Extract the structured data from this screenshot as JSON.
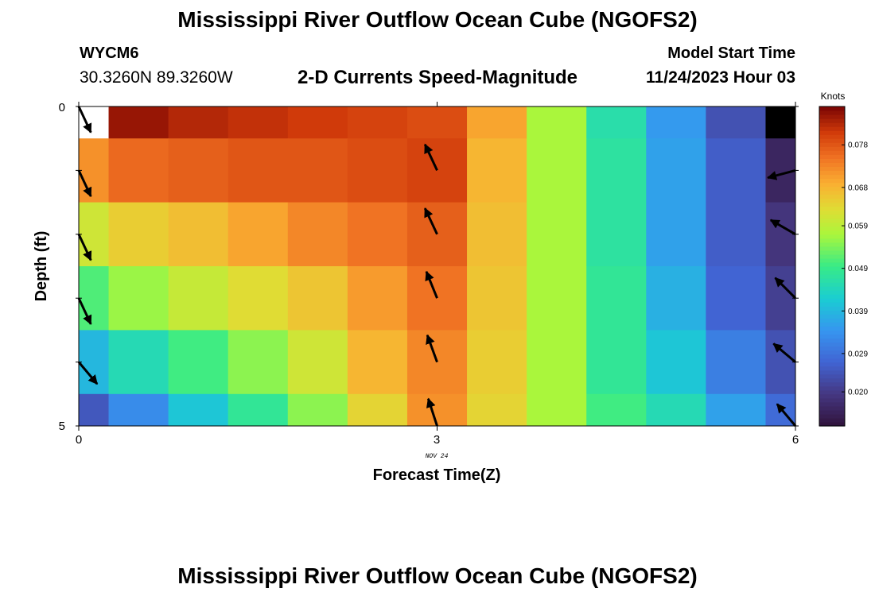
{
  "header": {
    "title": "Mississippi River Outflow Ocean Cube (NGOFS2)",
    "footer_title": "Mississippi River Outflow Ocean Cube (NGOFS2)",
    "station_id": "WYCM6",
    "station_coords": "30.3260N  89.3260W",
    "subtitle": "2-D Currents Speed-Magnitude",
    "model_start_label": "Model Start Time",
    "model_start_value": "11/24/2023 Hour 03"
  },
  "chart_data": {
    "type": "heatmap",
    "title": "2-D Currents Speed-Magnitude",
    "xlabel": "Forecast Time(Z)",
    "ylabel": "Depth (ft)",
    "x_ticks": [
      "0",
      "3",
      "6"
    ],
    "y_ticks": [
      "0",
      "5"
    ],
    "xlim": [
      0,
      6
    ],
    "ylim": [
      0,
      5
    ],
    "date_label": "NOV 24",
    "x_bins": [
      0,
      0.25,
      0.75,
      1.25,
      1.75,
      2.25,
      2.75,
      3.25,
      3.75,
      4.25,
      4.75,
      5.25,
      5.75,
      6
    ],
    "y_bins": [
      0,
      0.5,
      1.5,
      2.5,
      3.5,
      4.5,
      5
    ],
    "colorbar": {
      "units": "Knots",
      "min": 0.012,
      "max": 0.087,
      "ticks": [
        "0.078",
        "0.068",
        "0.059",
        "0.049",
        "0.039",
        "0.029",
        "0.020"
      ]
    },
    "grid": [
      [
        null,
        0.085,
        0.083,
        0.082,
        0.081,
        0.08,
        0.079,
        0.07,
        0.057,
        0.046,
        0.035,
        0.024,
        0.009
      ],
      [
        0.072,
        0.076,
        0.077,
        0.078,
        0.078,
        0.079,
        0.08,
        0.068,
        0.057,
        0.047,
        0.036,
        0.026,
        0.016
      ],
      [
        0.061,
        0.065,
        0.067,
        0.07,
        0.073,
        0.075,
        0.077,
        0.067,
        0.057,
        0.047,
        0.036,
        0.026,
        0.019
      ],
      [
        0.051,
        0.056,
        0.06,
        0.063,
        0.066,
        0.071,
        0.075,
        0.066,
        0.057,
        0.048,
        0.038,
        0.027,
        0.021
      ],
      [
        0.039,
        0.045,
        0.05,
        0.055,
        0.061,
        0.068,
        0.073,
        0.065,
        0.057,
        0.048,
        0.041,
        0.031,
        0.024
      ],
      [
        0.025,
        0.033,
        0.041,
        0.048,
        0.055,
        0.064,
        0.072,
        0.064,
        0.057,
        0.05,
        0.045,
        0.036,
        0.028
      ]
    ],
    "vectors": [
      {
        "t": 0,
        "depth": 0,
        "dir_deg": 155
      },
      {
        "t": 0,
        "depth": 1,
        "dir_deg": 155
      },
      {
        "t": 0,
        "depth": 2,
        "dir_deg": 155
      },
      {
        "t": 0,
        "depth": 3,
        "dir_deg": 155
      },
      {
        "t": 0,
        "depth": 4,
        "dir_deg": 140
      },
      {
        "t": 3,
        "depth": 1,
        "dir_deg": -25
      },
      {
        "t": 3,
        "depth": 2,
        "dir_deg": -25
      },
      {
        "t": 3,
        "depth": 3,
        "dir_deg": -22
      },
      {
        "t": 3,
        "depth": 4,
        "dir_deg": -20
      },
      {
        "t": 3,
        "depth": 5,
        "dir_deg": -18
      },
      {
        "t": 6,
        "depth": 1,
        "dir_deg": -105
      },
      {
        "t": 6,
        "depth": 2,
        "dir_deg": -60
      },
      {
        "t": 6,
        "depth": 3,
        "dir_deg": -45
      },
      {
        "t": 6,
        "depth": 4,
        "dir_deg": -50
      },
      {
        "t": 6,
        "depth": 5,
        "dir_deg": -40
      }
    ]
  }
}
